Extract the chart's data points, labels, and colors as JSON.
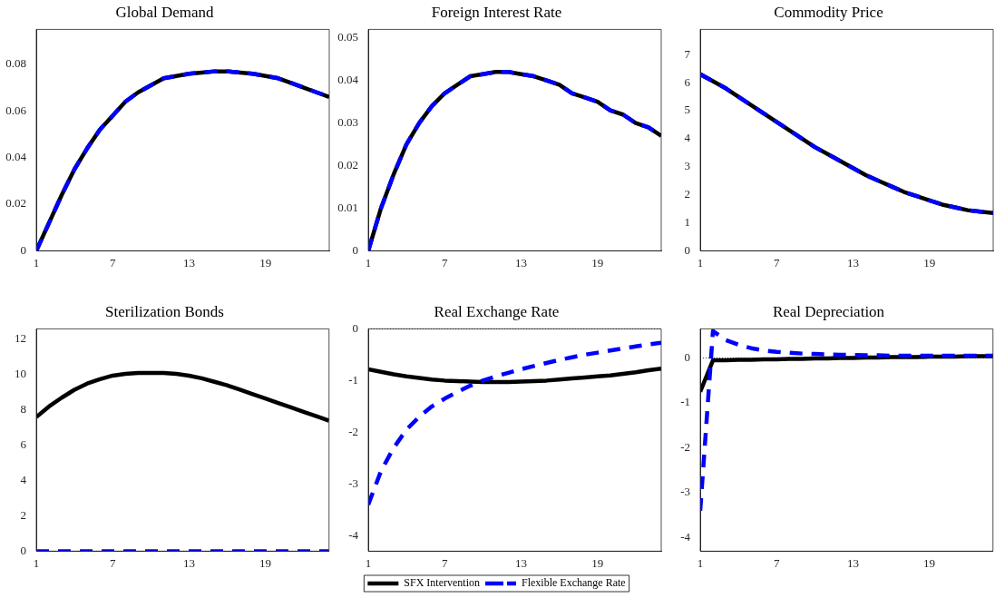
{
  "chart_data": [
    {
      "type": "line",
      "title": "Global Demand",
      "x": [
        1,
        2,
        3,
        4,
        5,
        6,
        7,
        8,
        9,
        10,
        11,
        12,
        13,
        14,
        15,
        16,
        17,
        18,
        19,
        20,
        21,
        22,
        23,
        24
      ],
      "xlim": [
        1,
        24
      ],
      "xticks": [
        1,
        7,
        13,
        19
      ],
      "ylim": [
        0,
        0.095
      ],
      "yticks": [
        0,
        0.02,
        0.04,
        0.06,
        0.08
      ],
      "series": [
        {
          "color": "#000000",
          "line_style": "solid",
          "values": [
            0,
            0.012,
            0.024,
            0.035,
            0.044,
            0.052,
            0.058,
            0.064,
            0.068,
            0.071,
            0.074,
            0.075,
            0.076,
            0.0765,
            0.077,
            0.077,
            0.0765,
            0.076,
            0.075,
            0.074,
            0.072,
            0.07,
            0.068,
            0.066
          ]
        },
        {
          "color": "#0000ff",
          "line_style": "dashed",
          "values": [
            0,
            0.012,
            0.024,
            0.035,
            0.044,
            0.052,
            0.058,
            0.064,
            0.068,
            0.071,
            0.074,
            0.075,
            0.076,
            0.0765,
            0.077,
            0.077,
            0.0765,
            0.076,
            0.075,
            0.074,
            0.072,
            0.07,
            0.068,
            0.066
          ]
        }
      ]
    },
    {
      "type": "line",
      "title": "Foreign Interest Rate",
      "x": [
        1,
        2,
        3,
        4,
        5,
        6,
        7,
        8,
        9,
        10,
        11,
        12,
        13,
        14,
        15,
        16,
        17,
        18,
        19,
        20,
        21,
        22,
        23,
        24
      ],
      "xlim": [
        1,
        24
      ],
      "xticks": [
        1,
        7,
        13,
        19
      ],
      "ylim": [
        0,
        0.052
      ],
      "yticks": [
        0,
        0.01,
        0.02,
        0.03,
        0.04,
        0.05
      ],
      "series": [
        {
          "color": "#000000",
          "line_style": "solid",
          "values": [
            0,
            0.01,
            0.018,
            0.025,
            0.03,
            0.034,
            0.037,
            0.039,
            0.041,
            0.0415,
            0.042,
            0.042,
            0.0415,
            0.041,
            0.04,
            0.039,
            0.037,
            0.036,
            0.035,
            0.033,
            0.032,
            0.03,
            0.029,
            0.027
          ]
        },
        {
          "color": "#0000ff",
          "line_style": "dashed",
          "values": [
            0,
            0.01,
            0.018,
            0.025,
            0.03,
            0.034,
            0.037,
            0.039,
            0.041,
            0.0415,
            0.042,
            0.042,
            0.0415,
            0.041,
            0.04,
            0.039,
            0.037,
            0.036,
            0.035,
            0.033,
            0.032,
            0.03,
            0.029,
            0.027
          ]
        }
      ]
    },
    {
      "type": "line",
      "title": "Commodity Price",
      "x": [
        1,
        2,
        3,
        4,
        5,
        6,
        7,
        8,
        9,
        10,
        11,
        12,
        13,
        14,
        15,
        16,
        17,
        18,
        19,
        20,
        21,
        22,
        23,
        24
      ],
      "xlim": [
        1,
        24
      ],
      "xticks": [
        1,
        7,
        13,
        19
      ],
      "ylim": [
        0,
        7.9
      ],
      "yticks": [
        0,
        1,
        2,
        3,
        4,
        5,
        6,
        7
      ],
      "series": [
        {
          "color": "#000000",
          "line_style": "solid",
          "values": [
            6.3,
            6.05,
            5.8,
            5.5,
            5.2,
            4.9,
            4.6,
            4.3,
            4.0,
            3.7,
            3.45,
            3.2,
            2.95,
            2.7,
            2.5,
            2.3,
            2.1,
            1.95,
            1.8,
            1.65,
            1.55,
            1.45,
            1.4,
            1.35
          ]
        },
        {
          "color": "#0000ff",
          "line_style": "dashed",
          "values": [
            6.3,
            6.05,
            5.8,
            5.5,
            5.2,
            4.9,
            4.6,
            4.3,
            4.0,
            3.7,
            3.45,
            3.2,
            2.95,
            2.7,
            2.5,
            2.3,
            2.1,
            1.95,
            1.8,
            1.65,
            1.55,
            1.45,
            1.4,
            1.35
          ]
        }
      ]
    },
    {
      "type": "line",
      "title": "Sterilization Bonds",
      "x": [
        1,
        2,
        3,
        4,
        5,
        6,
        7,
        8,
        9,
        10,
        11,
        12,
        13,
        14,
        15,
        16,
        17,
        18,
        19,
        20,
        21,
        22,
        23,
        24
      ],
      "xlim": [
        1,
        24
      ],
      "xticks": [
        1,
        7,
        13,
        19
      ],
      "ylim": [
        0,
        12.6
      ],
      "yticks": [
        0,
        2,
        4,
        6,
        8,
        10,
        12
      ],
      "ref_lines": [
        {
          "axis": "y",
          "value": 0,
          "line_style": "dotted"
        }
      ],
      "series": [
        {
          "color": "#000000",
          "line_style": "solid",
          "values": [
            7.6,
            8.2,
            8.7,
            9.15,
            9.5,
            9.75,
            9.95,
            10.05,
            10.1,
            10.1,
            10.1,
            10.05,
            9.95,
            9.8,
            9.6,
            9.4,
            9.15,
            8.9,
            8.65,
            8.4,
            8.15,
            7.9,
            7.65,
            7.4
          ]
        },
        {
          "color": "#0000ff",
          "line_style": "dashed",
          "values": [
            0,
            0,
            0,
            0,
            0,
            0,
            0,
            0,
            0,
            0,
            0,
            0,
            0,
            0,
            0,
            0,
            0,
            0,
            0,
            0,
            0,
            0,
            0,
            0
          ]
        }
      ]
    },
    {
      "type": "line",
      "title": "Real Exchange Rate",
      "x": [
        1,
        2,
        3,
        4,
        5,
        6,
        7,
        8,
        9,
        10,
        11,
        12,
        13,
        14,
        15,
        16,
        17,
        18,
        19,
        20,
        21,
        22,
        23,
        24
      ],
      "xlim": [
        1,
        24
      ],
      "xticks": [
        1,
        7,
        13,
        19
      ],
      "ylim": [
        -4.3,
        0
      ],
      "yticks": [
        -4,
        -3,
        -2,
        -1,
        0
      ],
      "legend": "bottom",
      "ref_lines": [
        {
          "axis": "y",
          "value": 0,
          "line_style": "dotted"
        }
      ],
      "series": [
        {
          "name": "SFX Intervention",
          "color": "#000000",
          "line_style": "solid",
          "values": [
            -0.78,
            -0.83,
            -0.88,
            -0.92,
            -0.95,
            -0.98,
            -1.0,
            -1.01,
            -1.02,
            -1.03,
            -1.03,
            -1.03,
            -1.02,
            -1.01,
            -1.0,
            -0.98,
            -0.96,
            -0.94,
            -0.92,
            -0.9,
            -0.87,
            -0.84,
            -0.8,
            -0.77
          ]
        },
        {
          "name": "Flexible Exchange Rate",
          "color": "#0000ff",
          "line_style": "dashed",
          "values": [
            -3.4,
            -2.75,
            -2.3,
            -1.95,
            -1.7,
            -1.5,
            -1.35,
            -1.22,
            -1.1,
            -1.0,
            -0.92,
            -0.85,
            -0.78,
            -0.72,
            -0.66,
            -0.6,
            -0.55,
            -0.5,
            -0.46,
            -0.42,
            -0.38,
            -0.34,
            -0.3,
            -0.27
          ]
        }
      ]
    },
    {
      "type": "line",
      "title": "Real Depreciation",
      "x": [
        1,
        2,
        3,
        4,
        5,
        6,
        7,
        8,
        9,
        10,
        11,
        12,
        13,
        14,
        15,
        16,
        17,
        18,
        19,
        20,
        21,
        22,
        23,
        24
      ],
      "xlim": [
        1,
        24
      ],
      "xticks": [
        1,
        7,
        13,
        19
      ],
      "ylim": [
        -4.3,
        0.65
      ],
      "yticks": [
        -4,
        -3,
        -2,
        -1,
        0
      ],
      "ref_lines": [
        {
          "axis": "y",
          "value": 0,
          "line_style": "dotted"
        }
      ],
      "series": [
        {
          "color": "#000000",
          "line_style": "solid",
          "values": [
            -0.75,
            -0.05,
            -0.05,
            -0.04,
            -0.04,
            -0.03,
            -0.03,
            -0.02,
            -0.02,
            -0.01,
            -0.01,
            0,
            0,
            0.01,
            0.01,
            0.02,
            0.02,
            0.02,
            0.03,
            0.03,
            0.03,
            0.04,
            0.04,
            0.04
          ]
        },
        {
          "color": "#0000ff",
          "line_style": "dashed",
          "values": [
            -3.4,
            0.6,
            0.4,
            0.3,
            0.22,
            0.17,
            0.14,
            0.12,
            0.1,
            0.09,
            0.08,
            0.07,
            0.07,
            0.06,
            0.06,
            0.05,
            0.05,
            0.05,
            0.05,
            0.05,
            0.05,
            0.05,
            0.05,
            0.05
          ]
        }
      ]
    }
  ]
}
